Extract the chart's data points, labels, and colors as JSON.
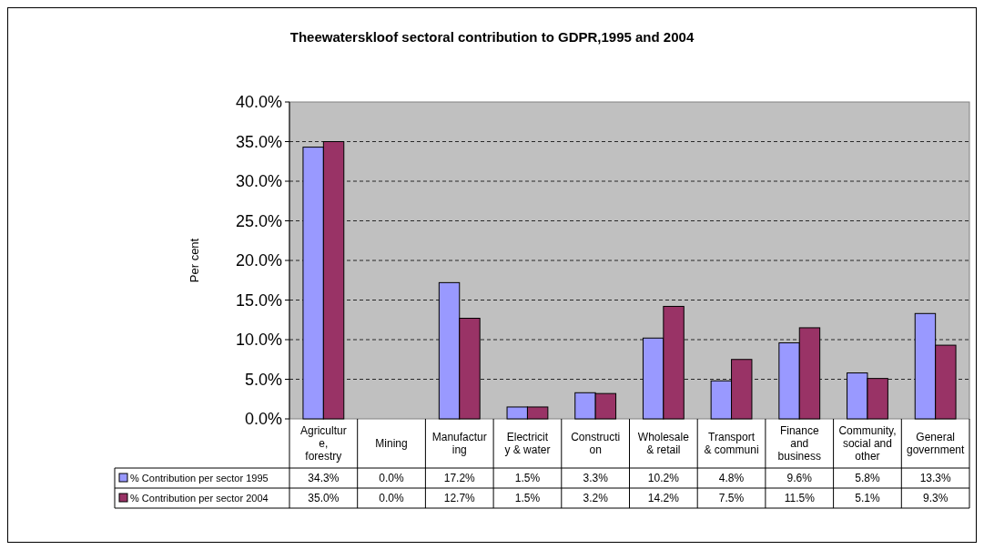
{
  "chart_data": {
    "type": "bar",
    "title": "Theewaterskloof sectoral contribution to GDPR,1995 and 2004",
    "ylabel": "Per cent",
    "categories": [
      "Agriculture, forestry",
      "Mining",
      "Manufacturing",
      "Electricity & water",
      "Construction",
      "Wholesale & retail",
      "Transport & communi",
      "Finance and business",
      "Community, social and other",
      "General government"
    ],
    "series": [
      {
        "name": "% Contribution per sector 1995",
        "color": "#9999ff",
        "values": [
          34.3,
          0.0,
          17.2,
          1.5,
          3.3,
          10.2,
          4.8,
          9.6,
          5.8,
          13.3
        ],
        "value_labels": [
          "34.3%",
          "0.0%",
          "17.2%",
          "1.5%",
          "3.3%",
          "10.2%",
          "4.8%",
          "9.6%",
          "5.8%",
          "13.3%"
        ]
      },
      {
        "name": "% Contribution per sector 2004",
        "color": "#993366",
        "values": [
          35.0,
          0.0,
          12.7,
          1.5,
          3.2,
          14.2,
          7.5,
          11.5,
          5.1,
          9.3
        ],
        "value_labels": [
          "35.0%",
          "0.0%",
          "12.7%",
          "1.5%",
          "3.2%",
          "14.2%",
          "7.5%",
          "11.5%",
          "5.1%",
          "9.3%"
        ]
      }
    ],
    "ylim": [
      0,
      40
    ],
    "yticks": [
      {
        "value": 0,
        "label": "0.0%"
      },
      {
        "value": 5,
        "label": "5.0%"
      },
      {
        "value": 10,
        "label": "10.0%"
      },
      {
        "value": 15,
        "label": "15.0%"
      },
      {
        "value": 20,
        "label": "20.0%"
      },
      {
        "value": 25,
        "label": "25.0%"
      },
      {
        "value": 30,
        "label": "30.0%"
      },
      {
        "value": 35,
        "label": "35.0%"
      },
      {
        "value": 40,
        "label": "40.0%"
      }
    ],
    "grid": "y",
    "legend": "bottom"
  }
}
